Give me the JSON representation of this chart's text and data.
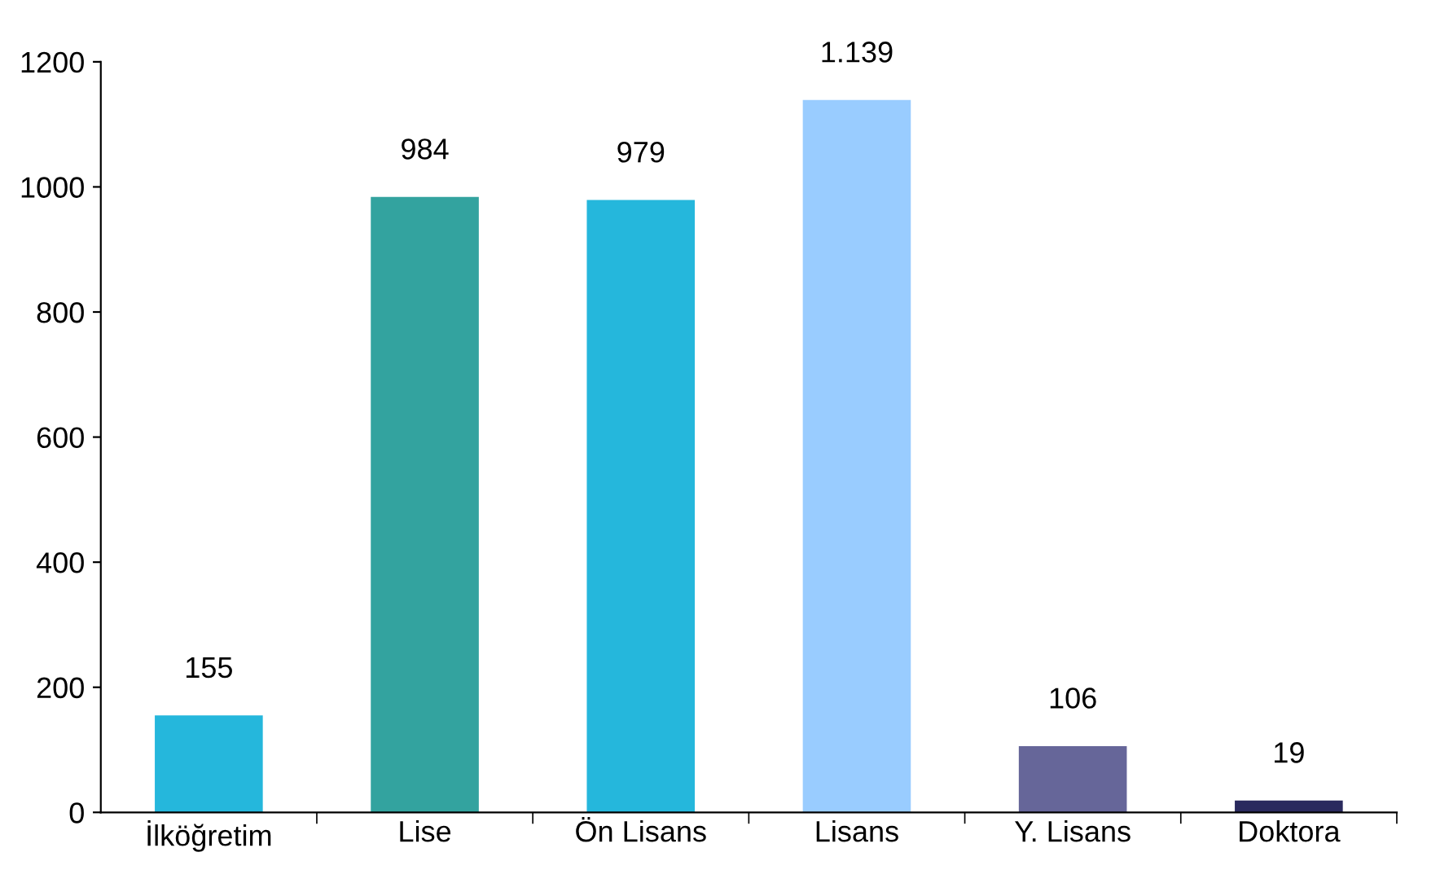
{
  "chart_data": {
    "type": "bar",
    "categories": [
      "İlköğretim",
      "Lise",
      "Ön Lisans",
      "Lisans",
      "Y. Lisans",
      "Doktora"
    ],
    "values": [
      155,
      984,
      979,
      1139,
      106,
      19
    ],
    "value_labels": [
      "155",
      "984",
      "979",
      "1.139",
      "106",
      "19"
    ],
    "colors": [
      "#25b7dc",
      "#33a39f",
      "#25b7dc",
      "#99ccff",
      "#666699",
      "#2a2a5e"
    ],
    "ylim": [
      0,
      1200
    ],
    "yticks": [
      0,
      200,
      400,
      600,
      800,
      1000,
      1200
    ],
    "grid": false,
    "legend": false
  }
}
